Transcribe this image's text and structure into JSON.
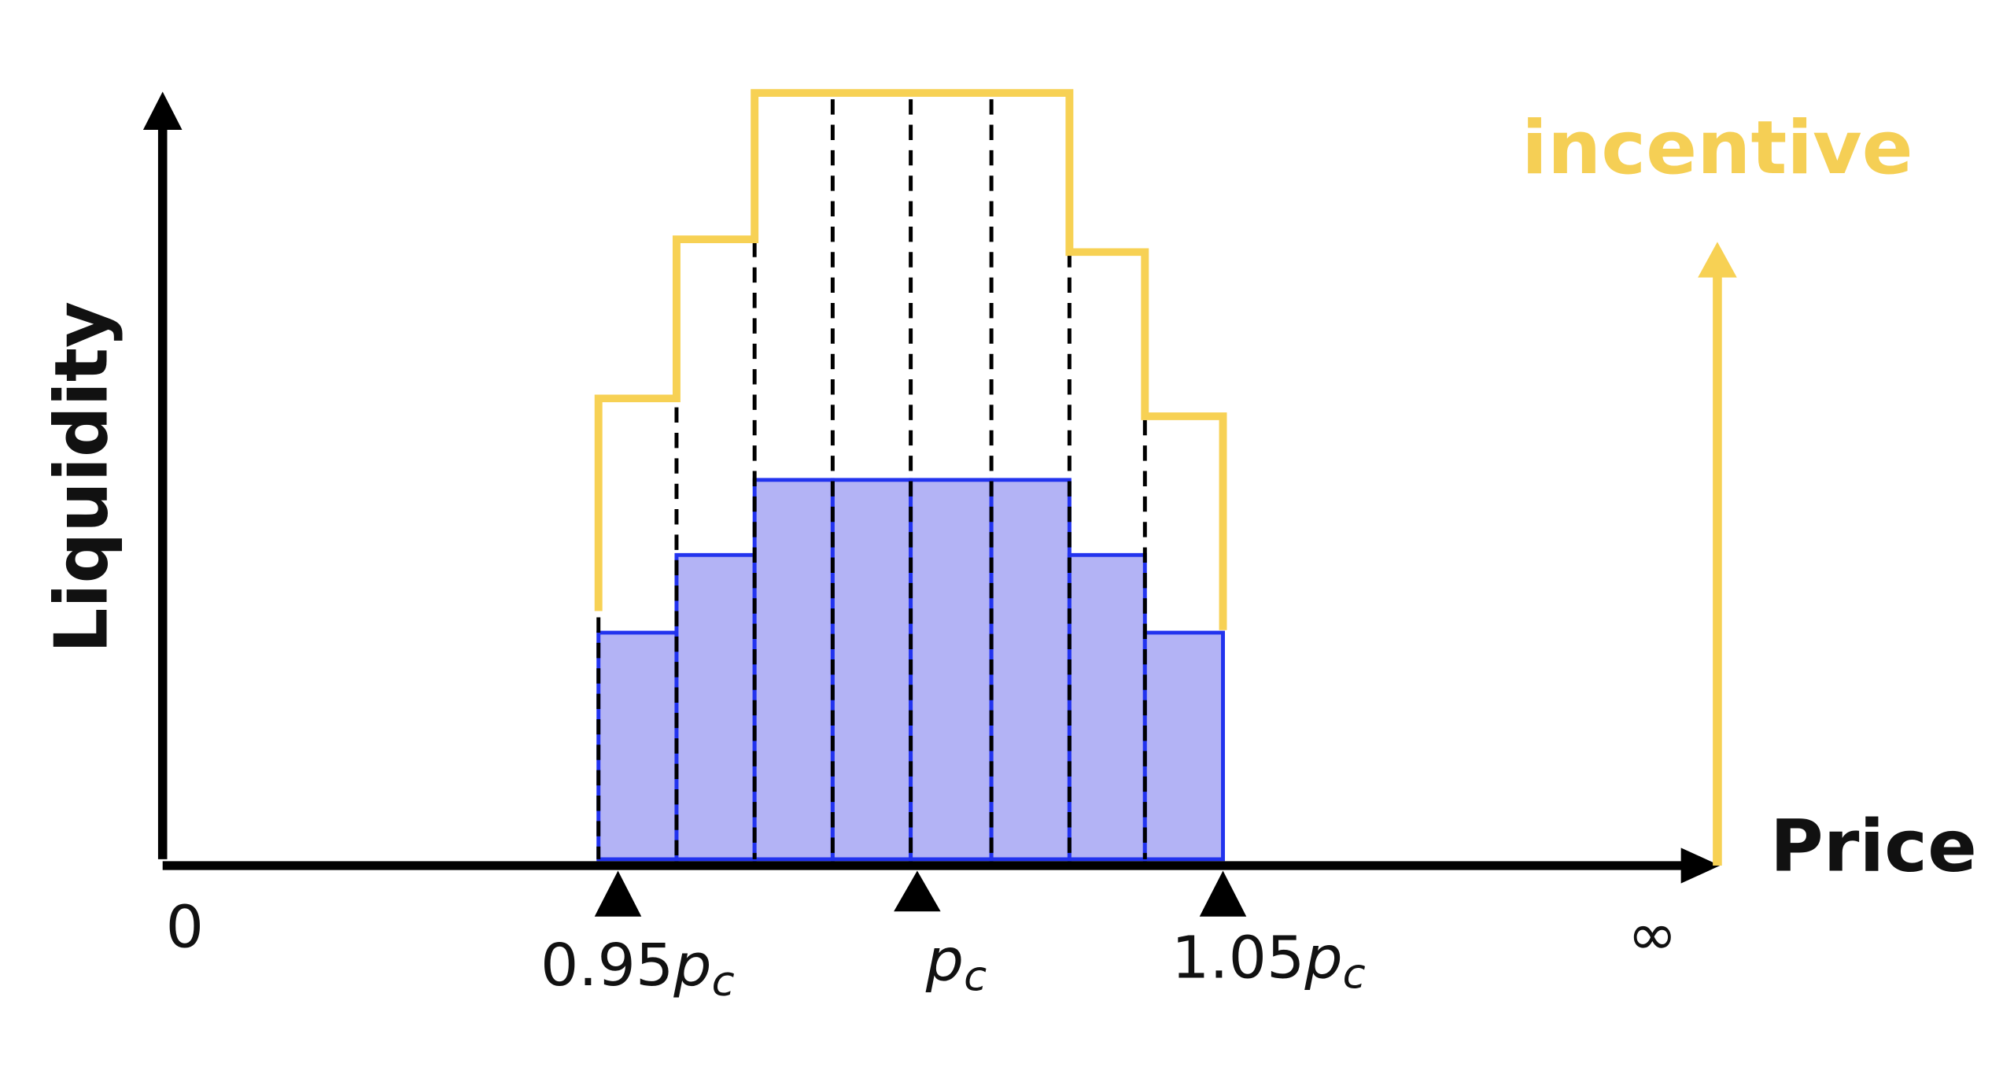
{
  "axes": {
    "y_label": "Liquidity",
    "x_label": "Price",
    "x_start": "0",
    "x_end": "∞"
  },
  "incentive_label": "incentive",
  "price_marks": [
    {
      "prefix": "0.95",
      "symbol": "p",
      "subscript": "c"
    },
    {
      "symbol": "p",
      "subscript": "c"
    },
    {
      "prefix": "1.05",
      "symbol": "p",
      "subscript": "c"
    }
  ]
}
